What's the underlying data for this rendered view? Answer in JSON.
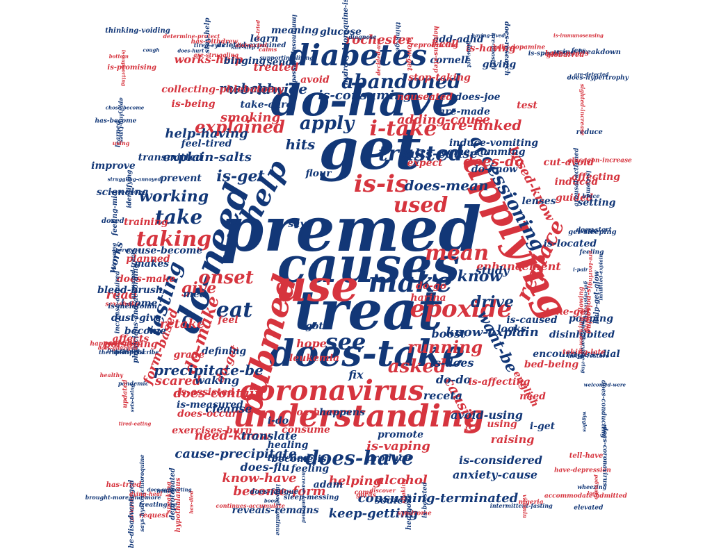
{
  "colors": {
    "background": "#ffffff",
    "blue": "#123777",
    "red": "#d6343e"
  },
  "large_words": [
    {
      "text": "premed",
      "color": "blue"
    },
    {
      "text": "causes",
      "color": "blue"
    },
    {
      "text": "get",
      "color": "blue"
    },
    {
      "text": "do-have",
      "color": "blue"
    },
    {
      "text": "treat",
      "color": "blue"
    },
    {
      "text": "use",
      "color": "red"
    },
    {
      "text": "does-take",
      "color": "blue"
    },
    {
      "text": "applying",
      "color": "red"
    },
    {
      "text": "do-need",
      "color": "blue"
    },
    {
      "text": "pubmed",
      "color": "red"
    },
    {
      "text": "diabetes",
      "color": "blue"
    },
    {
      "text": "understanding",
      "color": "red"
    },
    {
      "text": "coronavirus",
      "color": "red"
    },
    {
      "text": "help",
      "color": "blue"
    },
    {
      "text": "is-is",
      "color": "red"
    },
    {
      "text": "make",
      "color": "blue"
    },
    {
      "text": "epoxide",
      "color": "red"
    },
    {
      "text": "taking",
      "color": "red"
    },
    {
      "text": "i-take",
      "color": "red"
    },
    {
      "text": "trusted",
      "color": "blue"
    },
    {
      "text": "used",
      "color": "red"
    },
    {
      "text": "see",
      "color": "blue"
    },
    {
      "text": "eat",
      "color": "blue"
    },
    {
      "text": "take",
      "color": "blue"
    },
    {
      "text": "mean",
      "color": "red"
    },
    {
      "text": "asked",
      "color": "red"
    },
    {
      "text": "does-have",
      "color": "blue"
    },
    {
      "text": "abandoned",
      "color": "blue"
    },
    {
      "text": "apply",
      "color": "blue"
    },
    {
      "text": "explained",
      "color": "red"
    },
    {
      "text": "testing",
      "color": "blue"
    },
    {
      "text": "do-make",
      "color": "red"
    },
    {
      "text": "accessioning",
      "color": "blue"
    },
    {
      "text": "replace",
      "color": "red"
    },
    {
      "text": "want-be",
      "color": "blue"
    },
    {
      "text": "running",
      "color": "red"
    },
    {
      "text": "onset",
      "color": "red"
    },
    {
      "text": "give",
      "color": "red"
    },
    {
      "text": "is-get",
      "color": "blue"
    },
    {
      "text": "drive",
      "color": "blue"
    },
    {
      "text": "know",
      "color": "blue"
    },
    {
      "text": "working",
      "color": "blue"
    },
    {
      "text": "worldwide",
      "color": "blue"
    },
    {
      "text": "hits",
      "color": "blue"
    },
    {
      "text": "is-consuming",
      "color": "blue"
    },
    {
      "text": "reshape",
      "color": "blue"
    },
    {
      "text": "rochester",
      "color": "red"
    },
    {
      "text": "causing",
      "color": "red"
    },
    {
      "text": "does-do",
      "color": "red"
    },
    {
      "text": "are-linked",
      "color": "red"
    },
    {
      "text": "does-mean",
      "color": "blue"
    },
    {
      "text": "salts-cause",
      "color": "blue"
    },
    {
      "text": "adding-cause",
      "color": "red"
    },
    {
      "text": "help-having",
      "color": "blue"
    },
    {
      "text": "explain-salts",
      "color": "blue"
    },
    {
      "text": "smoking",
      "color": "red"
    },
    {
      "text": "form-based",
      "color": "red"
    },
    {
      "text": "precipitate-be",
      "color": "blue"
    },
    {
      "text": "does-contain",
      "color": "red"
    },
    {
      "text": "need-know",
      "color": "red"
    },
    {
      "text": "cause-precipitate",
      "color": "blue"
    },
    {
      "text": "know-have",
      "color": "red"
    },
    {
      "text": "helping",
      "color": "red"
    },
    {
      "text": "alcohol",
      "color": "red"
    },
    {
      "text": "keep-getting",
      "color": "blue"
    },
    {
      "text": "consuming-terminated",
      "color": "blue"
    },
    {
      "text": "is-vaping",
      "color": "red"
    },
    {
      "text": "know-explain",
      "color": "blue"
    },
    {
      "text": "based-know",
      "color": "red"
    },
    {
      "text": "do-get",
      "color": "red"
    },
    {
      "text": "retake",
      "color": "red"
    },
    {
      "text": "scared",
      "color": "red"
    },
    {
      "text": "read",
      "color": "red"
    },
    {
      "text": "cleanse",
      "color": "blue"
    },
    {
      "text": "waking",
      "color": "blue"
    },
    {
      "text": "boost",
      "color": "blue"
    },
    {
      "text": "fix",
      "color": "blue"
    },
    {
      "text": "hope",
      "color": "red"
    },
    {
      "text": "become-form",
      "color": "red"
    },
    {
      "text": "enhancement",
      "color": "red"
    },
    {
      "text": "do-do",
      "color": "blue"
    },
    {
      "text": "is-does",
      "color": "blue"
    },
    {
      "text": "receta",
      "color": "blue"
    },
    {
      "text": "translate",
      "color": "blue"
    },
    {
      "text": "does-flu",
      "color": "blue"
    },
    {
      "text": "anxiety-cause",
      "color": "blue"
    },
    {
      "text": "raising",
      "color": "red"
    },
    {
      "text": "is-considered",
      "color": "blue"
    },
    {
      "text": "avoid-using",
      "color": "blue"
    },
    {
      "text": "study",
      "color": "blue"
    },
    {
      "text": "i-come",
      "color": "blue"
    },
    {
      "text": "med",
      "color": "blue"
    },
    {
      "text": "prevent",
      "color": "blue"
    },
    {
      "text": "improve",
      "color": "blue"
    },
    {
      "text": "transmitted",
      "color": "blue"
    },
    {
      "text": "sciencing",
      "color": "blue"
    },
    {
      "text": "feel-tired",
      "color": "blue"
    },
    {
      "text": "take-cure",
      "color": "blue"
    },
    {
      "text": "flour",
      "color": "blue"
    },
    {
      "text": "is-being",
      "color": "red"
    },
    {
      "text": "works-help",
      "color": "red"
    },
    {
      "text": "treated",
      "color": "red"
    },
    {
      "text": "binging",
      "color": "blue"
    },
    {
      "text": "collecting-phlebotomy",
      "color": "red"
    },
    {
      "text": "avoid",
      "color": "red"
    },
    {
      "text": "nauseated",
      "color": "red"
    },
    {
      "text": "are-made",
      "color": "blue"
    },
    {
      "text": "induce-vomiting",
      "color": "blue"
    },
    {
      "text": "come-cumming",
      "color": "blue"
    },
    {
      "text": "do-know",
      "color": "blue"
    },
    {
      "text": "cut-avoid",
      "color": "red"
    },
    {
      "text": "affecting",
      "color": "red"
    },
    {
      "text": "induced",
      "color": "red"
    },
    {
      "text": "guided",
      "color": "red"
    },
    {
      "text": "is-located",
      "color": "blue"
    },
    {
      "text": "setting",
      "color": "blue"
    },
    {
      "text": "lenses",
      "color": "blue"
    },
    {
      "text": "popping",
      "color": "blue"
    },
    {
      "text": "looks",
      "color": "blue"
    },
    {
      "text": "take-get",
      "color": "red"
    },
    {
      "text": "is-caused",
      "color": "blue"
    },
    {
      "text": "english",
      "color": "red"
    },
    {
      "text": "bed-being",
      "color": "red"
    },
    {
      "text": "disinhibited",
      "color": "blue"
    },
    {
      "text": "encourages-dial",
      "color": "blue"
    },
    {
      "text": "is-affecting",
      "color": "red"
    },
    {
      "text": "i-get",
      "color": "blue"
    },
    {
      "text": "need",
      "color": "red"
    },
    {
      "text": "using",
      "color": "red"
    },
    {
      "text": "produce",
      "color": "blue"
    },
    {
      "text": "promote",
      "color": "blue"
    },
    {
      "text": "joe-have",
      "color": "red"
    },
    {
      "text": "exercises-burn",
      "color": "red"
    },
    {
      "text": "does-occur",
      "color": "red"
    },
    {
      "text": "is-measured",
      "color": "blue"
    },
    {
      "text": "defining",
      "color": "blue"
    },
    {
      "text": "affects",
      "color": "red"
    },
    {
      "text": "poisoning",
      "color": "red"
    },
    {
      "text": "become",
      "color": "blue"
    },
    {
      "text": "dust-give",
      "color": "blue"
    },
    {
      "text": "bleed-brush",
      "color": "blue"
    },
    {
      "text": "does-make",
      "color": "red"
    },
    {
      "text": "makes",
      "color": "blue"
    },
    {
      "text": "cause-become",
      "color": "blue"
    },
    {
      "text": "planned",
      "color": "red"
    },
    {
      "text": "works",
      "color": "blue"
    },
    {
      "text": "training",
      "color": "red"
    },
    {
      "text": "stop-taking",
      "color": "red"
    },
    {
      "text": "cornell",
      "color": "blue"
    },
    {
      "text": "is-having",
      "color": "red"
    },
    {
      "text": "add-adhd",
      "color": "blue"
    },
    {
      "text": "test",
      "color": "red"
    },
    {
      "text": "giving",
      "color": "blue"
    },
    {
      "text": "i-call",
      "color": "red"
    },
    {
      "text": "does-joe",
      "color": "blue"
    },
    {
      "text": "glucose",
      "color": "blue"
    },
    {
      "text": "meaning",
      "color": "blue"
    },
    {
      "text": "learn",
      "color": "blue"
    },
    {
      "text": "send",
      "color": "blue"
    },
    {
      "text": "consume",
      "color": "red"
    },
    {
      "text": "healing",
      "color": "blue"
    },
    {
      "text": "tell-lied",
      "color": "blue"
    },
    {
      "text": "reveals-remains",
      "color": "blue"
    },
    {
      "text": "become-is",
      "color": "blue"
    },
    {
      "text": "happens",
      "color": "blue"
    },
    {
      "text": "i-do",
      "color": "blue"
    },
    {
      "text": "adam",
      "color": "blue"
    },
    {
      "text": "sodico",
      "color": "blue"
    },
    {
      "text": "feeling",
      "color": "blue"
    },
    {
      "text": "leukemia",
      "color": "red"
    },
    {
      "text": "is-assisted",
      "color": "red"
    },
    {
      "text": "grade",
      "color": "red"
    },
    {
      "text": "says",
      "color": "blue"
    },
    {
      "text": "feel",
      "color": "red"
    },
    {
      "text": "got",
      "color": "blue"
    },
    {
      "text": "harina",
      "color": "red"
    },
    {
      "text": "do-go",
      "color": "red"
    },
    {
      "text": "expect",
      "color": "red"
    }
  ],
  "small_words": [
    "decided-use",
    "request",
    "dosed",
    "does-conducting",
    "are-struggling",
    "giving-are",
    "is-promising",
    "is-come",
    "has-withdrew",
    "intermittent-fasting",
    "sex-shake",
    "feeling",
    "having-lived",
    "syndrome",
    "therapist-prescribe",
    "arousal-actioned",
    "diagnose",
    "shaking",
    "struggling-annoyed",
    "using-breakdown",
    "deleted-explained",
    "accommodate-admitted",
    "answered-treat",
    "is-poisoning",
    "is-speculate",
    "says-hydroxychloroquine",
    "learned",
    "taking-late",
    "calms",
    "continues-accumulate",
    "has-tried",
    "is-working-glowing",
    "hydroxychloroquine-is",
    "does-fatigue",
    "is-melatonin",
    "reduce",
    "think-get",
    "look",
    "beczyl-be",
    "i-pair",
    "determine-protect",
    "elevated",
    "pandemic",
    "does-hypertrophy",
    "kite-step",
    "nigeria",
    "updated",
    "tell-have",
    "have-needs",
    "treating-re",
    "tired-eating",
    "are-detected",
    "are-boosted",
    "come",
    "bottom",
    "wheezing",
    "globarred",
    "has-died",
    "sets-being",
    "phosphorylate-ring",
    "ve-tried",
    "impact-continue",
    "are-located",
    "damaged",
    "help-dopamine",
    "speaking",
    "happens-takes",
    "have-depression",
    "thinking-voiding",
    "hypothalamus",
    "applying-types",
    "inhibited-explain",
    "is-immunosensing",
    "mule",
    "mineral",
    "sighted-increase",
    "reproducing",
    "does-supporting",
    "is-supporting",
    "welcomed-were",
    "stay-help",
    "hed-gone",
    "feeling-mid",
    "get-mysterious",
    "glow-get",
    "sleep-messing",
    "physicians-and-according",
    "get-sleeping",
    "immunosuppressed",
    "brought-more-and-more",
    "has-become",
    "does-coronavirus",
    "happens-step",
    "increase-consumed",
    "panicillin",
    "help-get-glow",
    "supporting-living",
    "be-disadvantaged",
    "pervasive",
    "wiggles",
    "cough",
    "discover",
    "healthy",
    "brace",
    "glow-get",
    "deprotonated",
    "does-glucagon",
    "glucagon-increase",
    "does-research",
    "dying-heal",
    "identifying",
    "sleeping",
    "distracted",
    "boost",
    "chose-become",
    "helps-restore",
    "fees",
    "vitamin",
    "screening",
    "are-tearing",
    "does-hurt",
    "got-is",
    "using",
    "wash",
    "tired-eyes",
    "is-boosted",
    "increase-acquired",
    "does-start"
  ]
}
